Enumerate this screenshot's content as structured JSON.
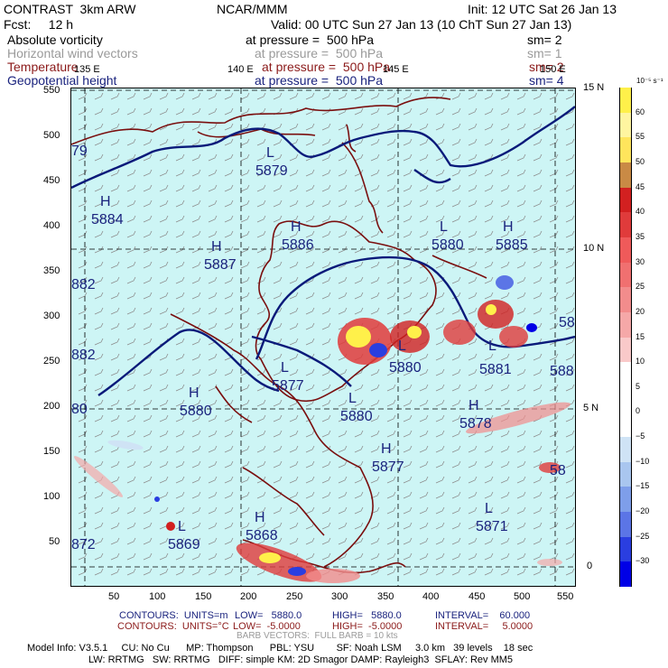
{
  "header": {
    "left1": "CONTRAST  3km ARW",
    "center1": "NCAR/MMM",
    "right1": "Init: 12 UTC Sat 26 Jan 13",
    "left2": "Fcst:     12 h",
    "right2": "Valid: 00 UTC Sun 27 Jan 13 (10 ChT Sun 27 Jan 13)"
  },
  "fields": [
    {
      "name": "Absolute vorticity",
      "pressure": "at pressure =  500 hPa",
      "sm": "sm= 2",
      "color": "#000000"
    },
    {
      "name": "Horizontal wind vectors",
      "pressure": "at pressure =  500 hPa",
      "sm": "sm= 1",
      "color": "#9a9a9a"
    },
    {
      "name": "Temperature",
      "pressure": "at pressure =  500 hPa",
      "sm": "sm= 2",
      "color": "#8b1a1a"
    },
    {
      "name": "Geopotential height",
      "pressure": "at pressure =  500 hPa",
      "sm": "sm= 4",
      "color": "#1a237e"
    }
  ],
  "map": {
    "lon_labels": [
      "135 E",
      "140 E",
      "145 E",
      "150 E"
    ],
    "lat_labels": [
      "15 N",
      "10 N",
      "5 N",
      "0"
    ],
    "x_ticks": [
      "50",
      "100",
      "150",
      "200",
      "250",
      "300",
      "350",
      "400",
      "450",
      "500",
      "550"
    ],
    "y_ticks": [
      "550",
      "500",
      "450",
      "400",
      "350",
      "300",
      "250",
      "200",
      "150",
      "100",
      "50"
    ],
    "hl_labels": [
      {
        "mark": "L",
        "value": "5879"
      },
      {
        "mark": "H",
        "value": "5884"
      },
      {
        "mark": "H",
        "value": "5887"
      },
      {
        "mark": "H",
        "value": "5886"
      },
      {
        "mark": "L",
        "value": "5880"
      },
      {
        "mark": "H",
        "value": "5885"
      },
      {
        "mark": "L",
        "value": "5877"
      },
      {
        "mark": "H",
        "value": "5880"
      },
      {
        "mark": "L",
        "value": "5880"
      },
      {
        "mark": "H",
        "value": "5878"
      },
      {
        "mark": "H",
        "value": "5877"
      },
      {
        "mark": "L",
        "value": "5871"
      },
      {
        "mark": "H",
        "value": "5868"
      },
      {
        "mark": "L",
        "value": "5869"
      },
      {
        "mark": "L",
        "value": "5881"
      },
      {
        "mark": "L",
        "value": "5880"
      }
    ],
    "edge_labels": [
      "79",
      "882",
      "882",
      "80",
      "872",
      "58",
      "58",
      "588"
    ]
  },
  "colorbar": {
    "unit": "10⁻⁵ s⁻¹",
    "labels": [
      "60",
      "55",
      "50",
      "45",
      "40",
      "35",
      "30",
      "25",
      "20",
      "15",
      "10",
      "5",
      "0",
      "−5",
      "−10",
      "−15",
      "−20",
      "−25",
      "−30"
    ],
    "colors": [
      "#fff04a",
      "#fff5a0",
      "#ffe55c",
      "#c98a45",
      "#d22020",
      "#e03b3b",
      "#ef5a5a",
      "#f07070",
      "#f28c8c",
      "#f5a8a8",
      "#f9c9c9",
      "#ffffff",
      "#ffffff",
      "#ffffff",
      "#cfe3f5",
      "#a9c6ef",
      "#7e9eea",
      "#5b75e6",
      "#2a3ee0",
      "#0000e6"
    ]
  },
  "footer": {
    "contours1_label": "CONTOURS:  UNITS=m",
    "contours1_low": "LOW=   5880.0",
    "contours1_high": "HIGH=   5880.0",
    "contours1_int": "INTERVAL=    60.000",
    "contours2_label": "CONTOURS:  UNITS=°C",
    "contours2_low": "LOW=  -5.0000",
    "contours2_high": "HIGH=  -5.0000",
    "contours2_int": "INTERVAL=     5.0000",
    "barb": "BARB VECTORS:  FULL BARB = 10 kts",
    "model1": "Model Info: V3.5.1     CU: No Cu      MP: Thompson      PBL: YSU        SF: Noah LSM     3.0 km   39 levels    18 sec",
    "model2": "LW: RRTMG   SW: RRTMG   DIFF: simple KM: 2D Smagor DAMP: Rayleigh3  SFLAY: Rev MM5"
  }
}
